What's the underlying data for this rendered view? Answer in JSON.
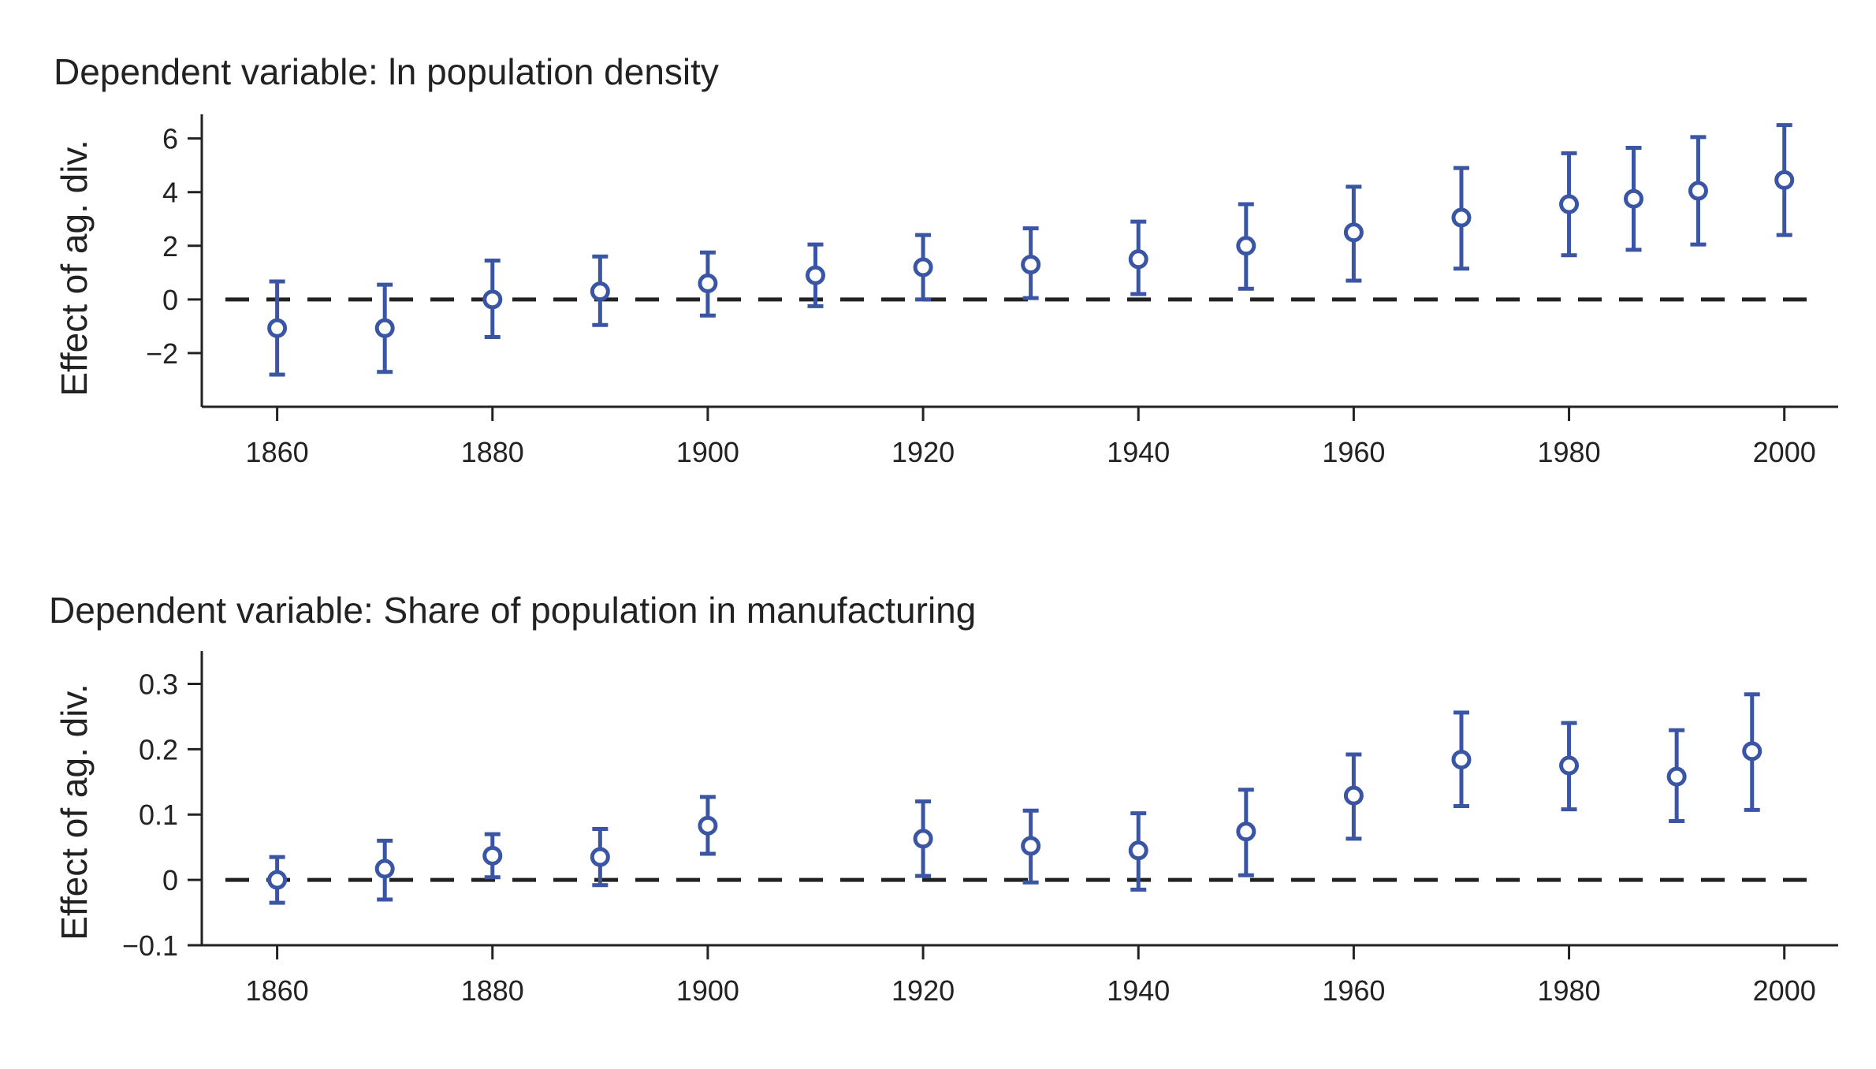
{
  "colors": {
    "series": "#3a55a4",
    "axis": "#222222",
    "reference_line": "#222222"
  },
  "chart_data": [
    {
      "type": "scatter",
      "title": "Dependent variable: ln population density",
      "ylabel": "Effect of ag. div.",
      "xlabel": "",
      "xlim": [
        1853,
        2005
      ],
      "ylim": [
        -4,
        6.9
      ],
      "xticks": [
        1860,
        1880,
        1900,
        1920,
        1940,
        1960,
        1980,
        2000
      ],
      "yticks": [
        -2,
        0,
        2,
        4,
        6
      ],
      "ytick_labels": [
        "−2",
        "0",
        "2",
        "4",
        "6"
      ],
      "reference_line": 0,
      "grid": false,
      "error_bars": true,
      "x": [
        1860,
        1870,
        1880,
        1890,
        1900,
        1910,
        1920,
        1930,
        1940,
        1950,
        1960,
        1970,
        1980,
        1986,
        1992,
        2000
      ],
      "y": [
        -1.07,
        -1.07,
        0.0,
        0.3,
        0.6,
        0.9,
        1.2,
        1.3,
        1.5,
        2.0,
        2.5,
        3.05,
        3.55,
        3.75,
        4.05,
        4.45
      ],
      "lower": [
        -2.8,
        -2.7,
        -1.4,
        -0.95,
        -0.6,
        -0.25,
        0.0,
        0.05,
        0.2,
        0.4,
        0.7,
        1.15,
        1.65,
        1.85,
        2.05,
        2.4
      ],
      "upper": [
        0.67,
        0.55,
        1.45,
        1.6,
        1.75,
        2.05,
        2.4,
        2.65,
        2.9,
        3.55,
        4.2,
        4.9,
        5.45,
        5.65,
        6.05,
        6.5
      ]
    },
    {
      "type": "scatter",
      "title": "Dependent variable: Share of population in manufacturing",
      "ylabel": "Effect of ag. div.",
      "xlabel": "",
      "xlim": [
        1853,
        2005
      ],
      "ylim": [
        -0.1,
        0.35
      ],
      "xticks": [
        1860,
        1880,
        1900,
        1920,
        1940,
        1960,
        1980,
        2000
      ],
      "yticks": [
        -0.1,
        0,
        0.1,
        0.2,
        0.3
      ],
      "ytick_labels": [
        "−0.1",
        "0",
        "0.1",
        "0.2",
        "0.3"
      ],
      "reference_line": 0,
      "grid": false,
      "error_bars": true,
      "x": [
        1860,
        1870,
        1880,
        1890,
        1900,
        1920,
        1930,
        1940,
        1950,
        1960,
        1970,
        1980,
        1990,
        1997
      ],
      "y": [
        0.0,
        0.017,
        0.037,
        0.035,
        0.083,
        0.063,
        0.052,
        0.045,
        0.074,
        0.129,
        0.184,
        0.175,
        0.158,
        0.197
      ],
      "lower": [
        -0.035,
        -0.03,
        0.004,
        -0.008,
        0.04,
        0.006,
        -0.004,
        -0.015,
        0.007,
        0.063,
        0.113,
        0.108,
        0.09,
        0.107
      ],
      "upper": [
        0.035,
        0.06,
        0.07,
        0.078,
        0.127,
        0.12,
        0.106,
        0.102,
        0.138,
        0.192,
        0.256,
        0.24,
        0.229,
        0.284
      ]
    }
  ]
}
